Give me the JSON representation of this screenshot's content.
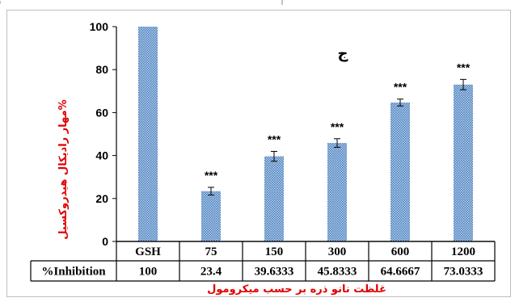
{
  "chart_data": {
    "type": "bar",
    "panel_label": "ج",
    "categories": [
      "GSH",
      "75",
      "150",
      "300",
      "600",
      "1200"
    ],
    "values": [
      100,
      23.4,
      39.6333,
      45.8333,
      64.6667,
      73.0333
    ],
    "errors": [
      0.3,
      1.8,
      2.3,
      2.0,
      1.6,
      2.4
    ],
    "significance": [
      "",
      "***",
      "***",
      "***",
      "***",
      "***"
    ],
    "ylabel": "%مهار رادیکال هیدروکسیل",
    "xlabel": "غلظت نانو ذره بر حسب میکرومول",
    "ylim": [
      0,
      100
    ],
    "yticks": [
      "0",
      "20",
      "40",
      "60",
      "80",
      "100"
    ],
    "grid": false,
    "bar_color": "#4f81bd",
    "data_table": {
      "row_label": "%Inhibition",
      "values": [
        "100",
        "23.4",
        "39.6333",
        "45.8333",
        "64.6667",
        "73.0333"
      ]
    }
  }
}
